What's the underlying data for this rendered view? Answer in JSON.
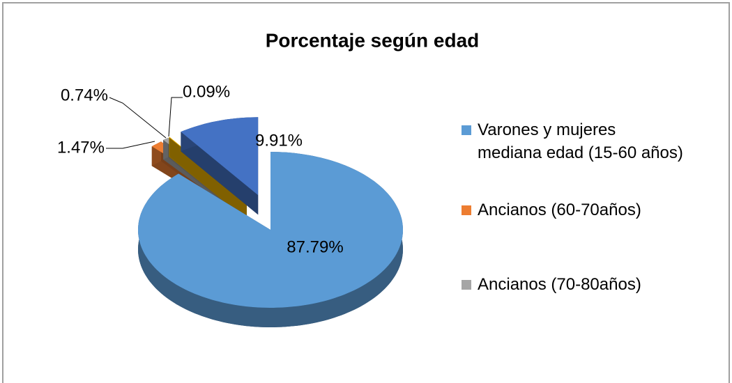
{
  "chart_data": {
    "type": "pie",
    "title": "Porcentaje según edad",
    "categories": [
      "Varones y mujeres mediana edad (15-60 años)",
      "Ancianos (60-70años)",
      "Ancianos (70-80años)",
      null,
      null
    ],
    "values": [
      87.79,
      1.47,
      0.74,
      0.09,
      9.91
    ],
    "value_labels": [
      "87.79%",
      "1.47%",
      "0.74%",
      "0.09%",
      "9.91%"
    ],
    "colors": [
      "#5b9bd5",
      "#ed7d31",
      "#a5a5a5",
      "#ffc000",
      "#4472c4"
    ],
    "legend": "right"
  }
}
